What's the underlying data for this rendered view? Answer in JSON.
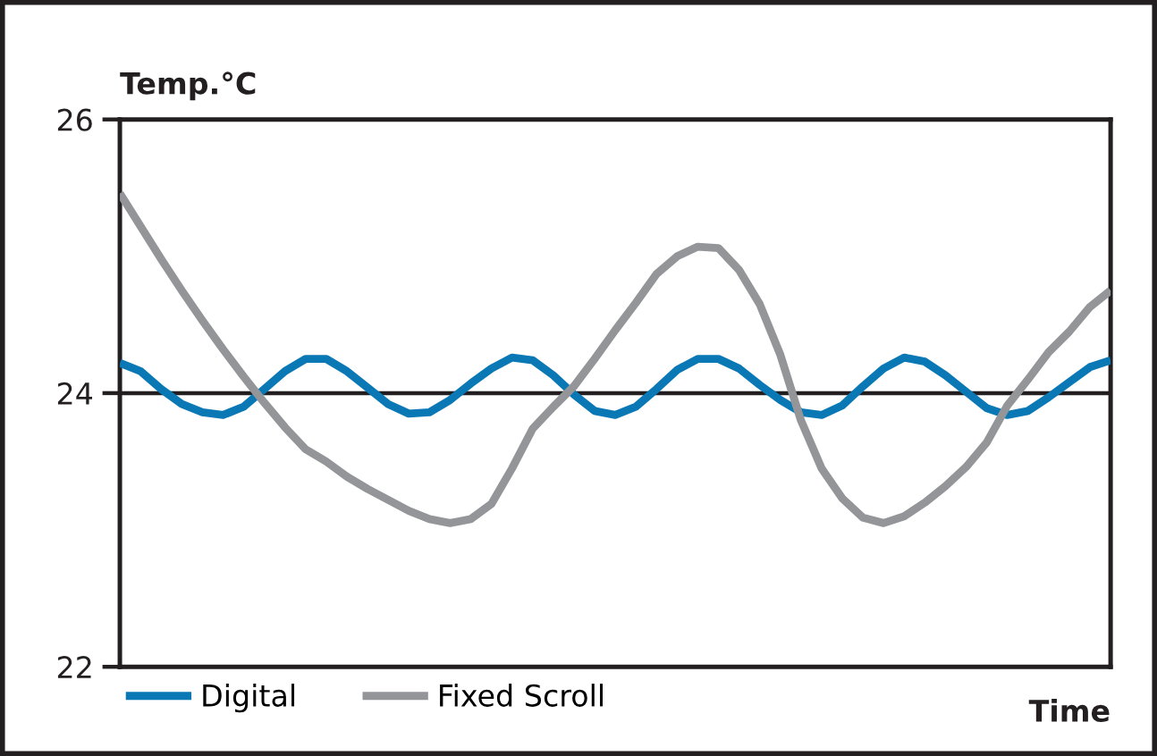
{
  "chart_data": {
    "type": "line",
    "ylabel": "Temp.°C",
    "xlabel": "Time",
    "categories": [
      null,
      null,
      null,
      null,
      null,
      null,
      null,
      null,
      null,
      null,
      null,
      null,
      null,
      null,
      null,
      null,
      null,
      null,
      null,
      null,
      null,
      null,
      null,
      null,
      null,
      null,
      null,
      null,
      null,
      null,
      null,
      null,
      null,
      null,
      null,
      null,
      null,
      null,
      null,
      null,
      null,
      null,
      null,
      null,
      null,
      null,
      null,
      null,
      null
    ],
    "series": [
      {
        "name": "Digital",
        "color": "#0a78b5",
        "values": [
          24.22,
          24.16,
          24.03,
          23.92,
          23.86,
          23.84,
          23.9,
          24.03,
          24.16,
          24.25,
          24.25,
          24.16,
          24.04,
          23.92,
          23.85,
          23.86,
          23.95,
          24.07,
          24.18,
          24.26,
          24.24,
          24.13,
          23.99,
          23.87,
          23.84,
          23.9,
          24.03,
          24.17,
          24.25,
          24.25,
          24.18,
          24.06,
          23.95,
          23.86,
          23.84,
          23.91,
          24.05,
          24.18,
          24.26,
          24.23,
          24.13,
          24.01,
          23.89,
          23.84,
          23.87,
          23.97,
          24.08,
          24.19,
          24.24
        ]
      },
      {
        "name": "Fixed Scroll",
        "color": "#939598",
        "values": [
          25.46,
          25.22,
          24.98,
          24.75,
          24.53,
          24.32,
          24.12,
          23.93,
          23.75,
          23.59,
          23.5,
          23.39,
          23.3,
          23.22,
          23.14,
          23.08,
          23.05,
          23.08,
          23.19,
          23.45,
          23.74,
          23.9,
          24.05,
          24.25,
          24.46,
          24.66,
          24.87,
          25.0,
          25.07,
          25.06,
          24.9,
          24.65,
          24.28,
          23.8,
          23.45,
          23.23,
          23.09,
          23.05,
          23.1,
          23.2,
          23.32,
          23.46,
          23.64,
          23.91,
          24.1,
          24.3,
          24.45,
          24.63,
          24.75
        ]
      }
    ],
    "ylim": [
      22,
      26
    ],
    "yticks": [
      22,
      24,
      26
    ],
    "ref_lines": [
      {
        "axis": "y",
        "value": 24,
        "color": "#231f20"
      }
    ],
    "legend": "bottom left",
    "marker": "none",
    "line_style": "solid"
  }
}
